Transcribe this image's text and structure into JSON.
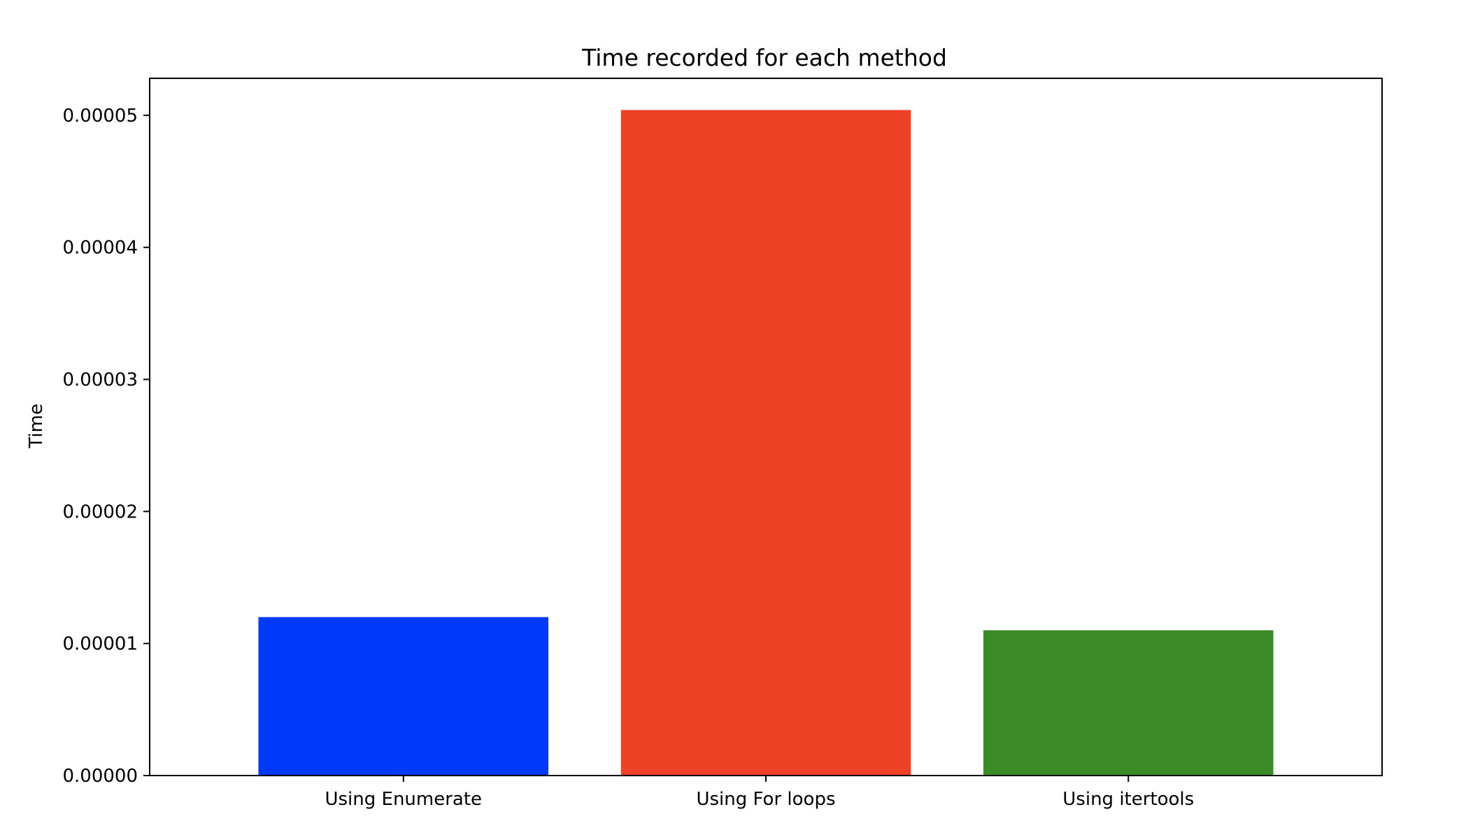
{
  "chart_data": {
    "type": "bar",
    "title": "Time recorded for each method",
    "xlabel": "",
    "ylabel": "Time",
    "categories": [
      "Using Enumerate",
      "Using For loops",
      "Using itertools"
    ],
    "values": [
      1.2e-05,
      5.04e-05,
      1.1e-05
    ],
    "colors": [
      "#0339f8",
      "#ed4126",
      "#3a8b28"
    ],
    "ylim": [
      0,
      5.28e-05
    ],
    "yticks": [
      0,
      1e-05,
      2e-05,
      3e-05,
      4e-05,
      5e-05
    ],
    "ytick_labels": [
      "0.00000",
      "0.00001",
      "0.00002",
      "0.00003",
      "0.00004",
      "0.00005"
    ],
    "grid": false,
    "legend": null
  }
}
